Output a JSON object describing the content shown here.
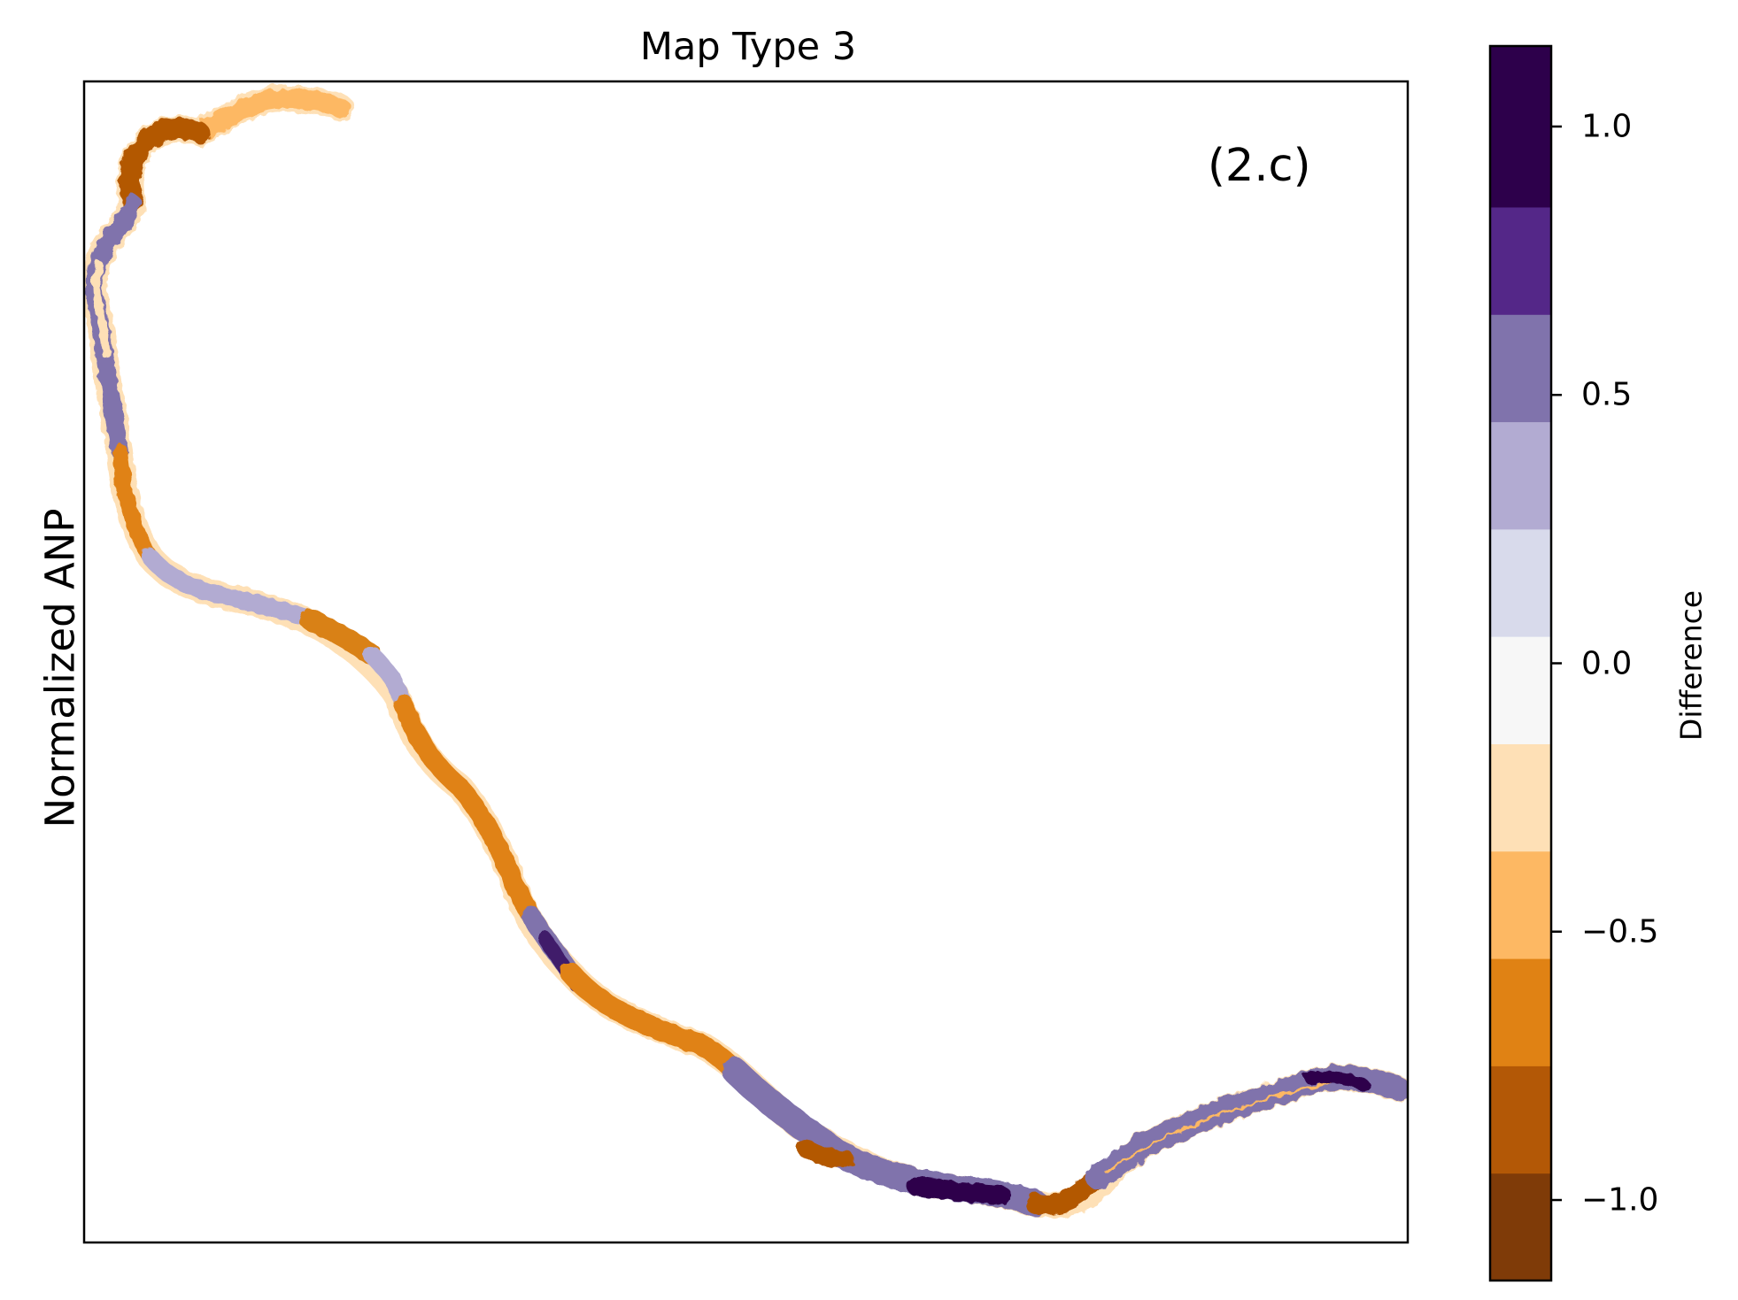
{
  "title": "Map Type 3",
  "ylabel": "Normalized ANP",
  "panel_label": "(2.c)",
  "colorbar": {
    "label": "Difference",
    "range": [
      -1.15,
      1.15
    ],
    "bins": [
      {
        "from": -1.15,
        "to": -0.95,
        "color": "#7f3b08"
      },
      {
        "from": -0.95,
        "to": -0.75,
        "color": "#b35806"
      },
      {
        "from": -0.75,
        "to": -0.55,
        "color": "#e08214"
      },
      {
        "from": -0.55,
        "to": -0.35,
        "color": "#fdb863"
      },
      {
        "from": -0.35,
        "to": -0.15,
        "color": "#fee0b6"
      },
      {
        "from": -0.15,
        "to": 0.05,
        "color": "#f7f7f7"
      },
      {
        "from": 0.05,
        "to": 0.25,
        "color": "#d8daeb"
      },
      {
        "from": 0.25,
        "to": 0.45,
        "color": "#b2abd2"
      },
      {
        "from": 0.45,
        "to": 0.65,
        "color": "#8073ac"
      },
      {
        "from": 0.65,
        "to": 0.85,
        "color": "#542788"
      },
      {
        "from": 0.85,
        "to": 1.15,
        "color": "#2d004b"
      }
    ],
    "ticks": [
      {
        "value": 1.0,
        "label": "1.0"
      },
      {
        "value": 0.5,
        "label": "0.5"
      },
      {
        "value": 0.0,
        "label": "0.0"
      },
      {
        "value": -0.5,
        "label": "−0.5"
      },
      {
        "value": -1.0,
        "label": "−1.0"
      }
    ]
  }
}
